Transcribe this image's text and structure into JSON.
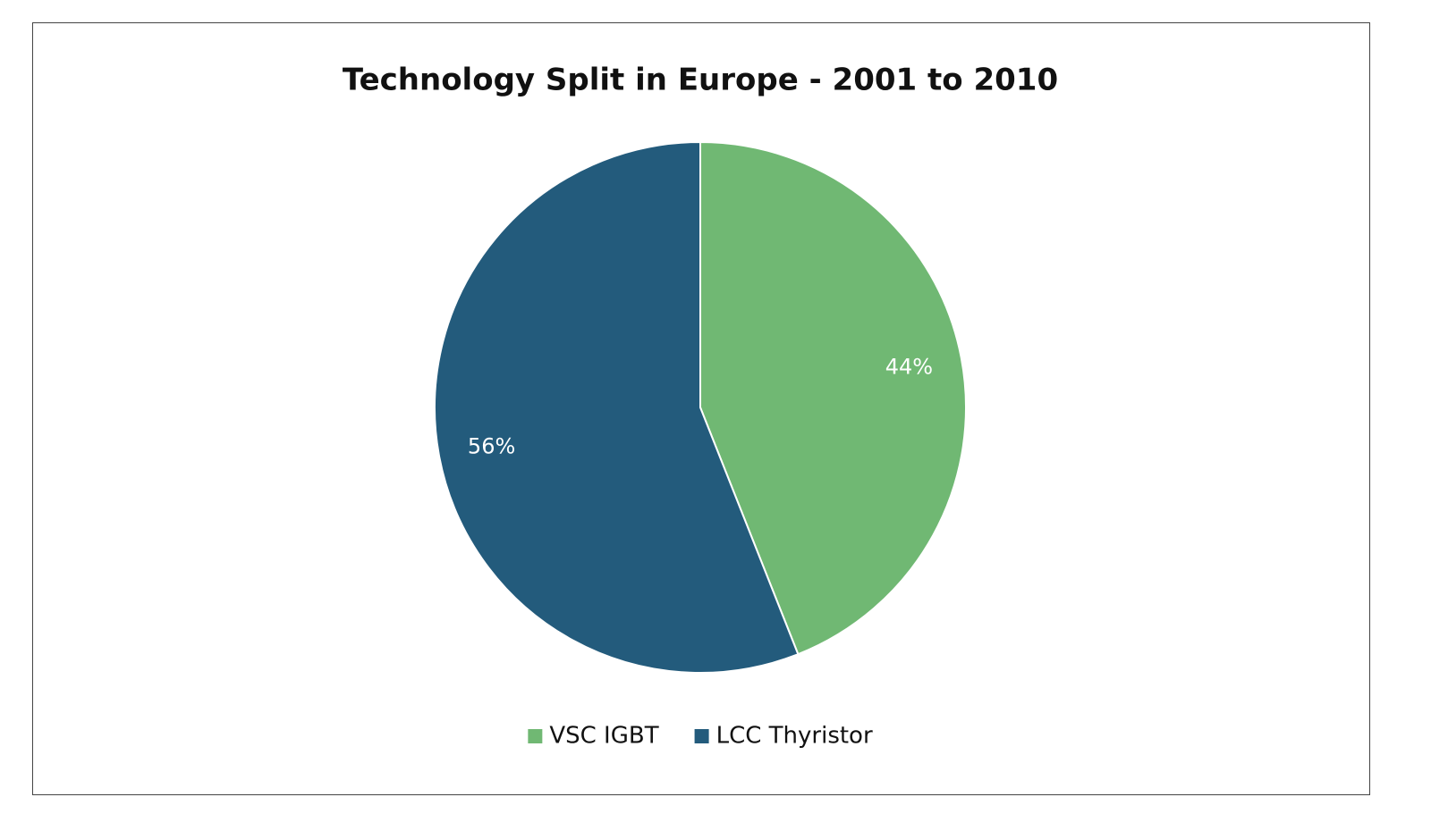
{
  "chart_data": {
    "type": "pie",
    "title": "Technology Split in Europe - 2001 to 2010",
    "categories": [
      "VSC IGBT",
      "LCC Thyristor"
    ],
    "values": [
      44,
      56
    ],
    "value_labels": [
      "44%",
      "56%"
    ],
    "colors": [
      "#70b873",
      "#235b7c"
    ],
    "legend": "bottom"
  }
}
